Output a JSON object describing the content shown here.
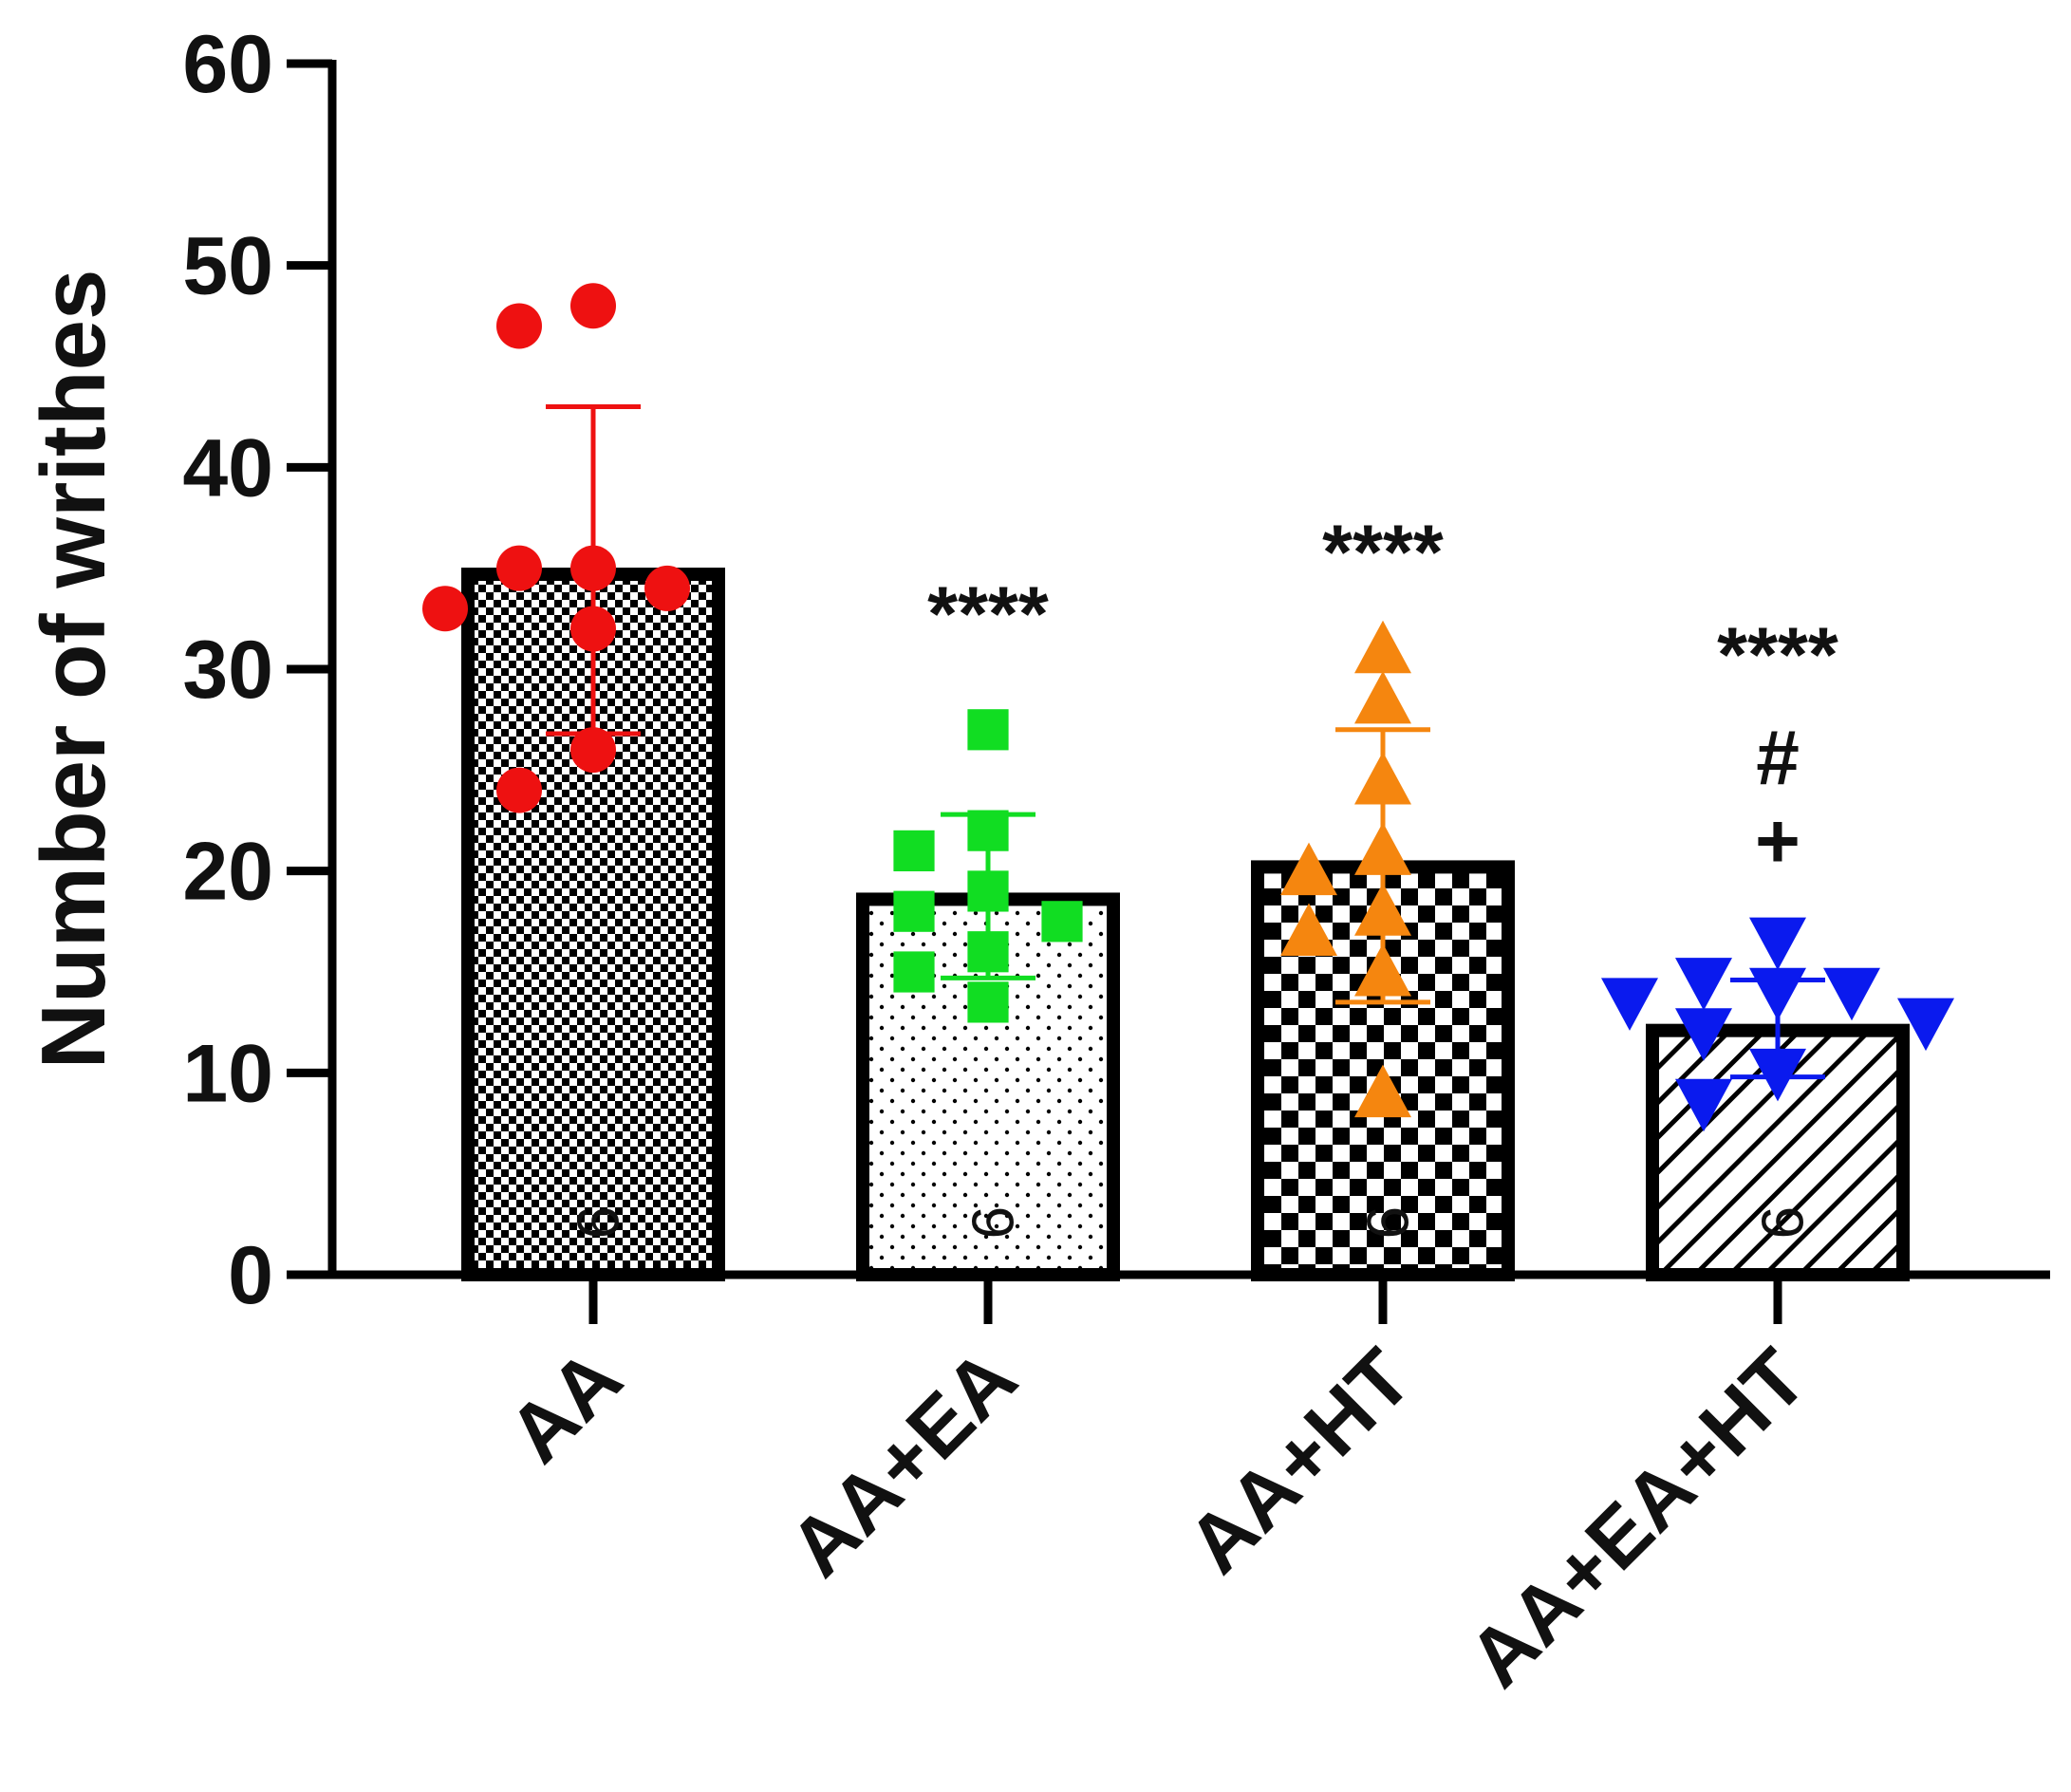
{
  "chart_data": {
    "type": "bar",
    "title": "",
    "xlabel": "",
    "ylabel": "Number of writhes",
    "ylim": [
      0,
      60
    ],
    "yticks": [
      0,
      10,
      20,
      30,
      40,
      50,
      60
    ],
    "ytick_labels": [
      "0",
      "10",
      "20",
      "30",
      "40",
      "50",
      "60"
    ],
    "categories": [
      "AA",
      "AA+EA",
      "AA+HT",
      "AA+EA+HT"
    ],
    "means": [
      34.7,
      18.6,
      20.2,
      12.1
    ],
    "sd_upper": [
      43.0,
      22.8,
      27.0,
      14.6
    ],
    "sd_lower": [
      26.8,
      14.7,
      13.5,
      9.8
    ],
    "n_labels": [
      "9",
      "9",
      "9",
      "9"
    ],
    "points": [
      [
        48,
        47,
        35,
        35,
        34,
        33,
        32,
        26,
        24
      ],
      [
        27,
        22,
        21,
        19,
        18,
        17.5,
        16,
        15,
        13.5
      ],
      [
        31,
        28.5,
        24.5,
        21,
        20,
        18,
        17,
        15,
        9
      ],
      [
        16.5,
        14.5,
        14,
        14,
        13.5,
        12.5,
        12,
        10,
        8.5
      ]
    ],
    "markers": [
      "circle",
      "square",
      "triangle-up",
      "triangle-down"
    ],
    "colors": [
      "#ee1111",
      "#11dd22",
      "#f5860f",
      "#0a1aee"
    ],
    "patterns": [
      "checker-fine",
      "dots",
      "checker-coarse",
      "diagonal-hatch"
    ],
    "annotations": [
      [],
      [
        "****"
      ],
      [
        "****"
      ],
      [
        "****",
        "#",
        "+"
      ]
    ]
  }
}
